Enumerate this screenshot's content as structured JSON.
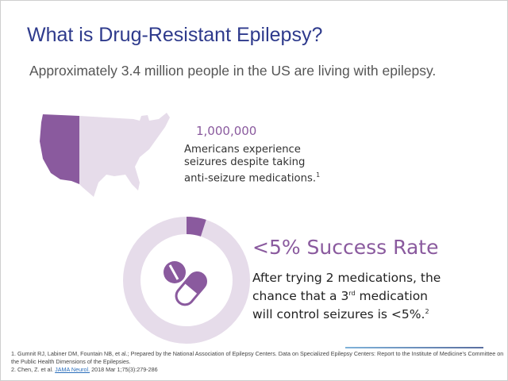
{
  "title": "What is Drug-Resistant Epilepsy?",
  "subtitle": "Approximately 3.4 million people in the US are living with epilepsy.",
  "stat1": {
    "value": "1,000,000",
    "line1": "Americans experience",
    "line2": "seizures despite taking",
    "line3": "anti-seizure medications.",
    "sup": "1"
  },
  "stat2": {
    "value": "<5% Success Rate",
    "line1": "After trying 2 medications, the",
    "line2a": "chance that a 3",
    "line2sup": "rd",
    "line2b": " medication",
    "line3": "will control seizures is <5%.",
    "sup": "2",
    "donut_fraction": 0.05
  },
  "footnotes": {
    "f1": "1. Gumnit RJ, Labiner DM, Fountain NB, et al.; Prepared by the National Association of Epilepsy Centers. Data on Specialized  Epilepsy Centers: Report to the Institute of Medicine's Committee on the Public Health Dimensions of the Epilepsies.",
    "f2a": "2. Chen, Z. et al. ",
    "f2link": "JAMA Neurol.",
    "f2b": " 2018 Mar 1;75(3):279-286"
  },
  "colors": {
    "purple": "#8a5a9e",
    "light": "#e6dcea",
    "navy": "#2e3a8c"
  }
}
